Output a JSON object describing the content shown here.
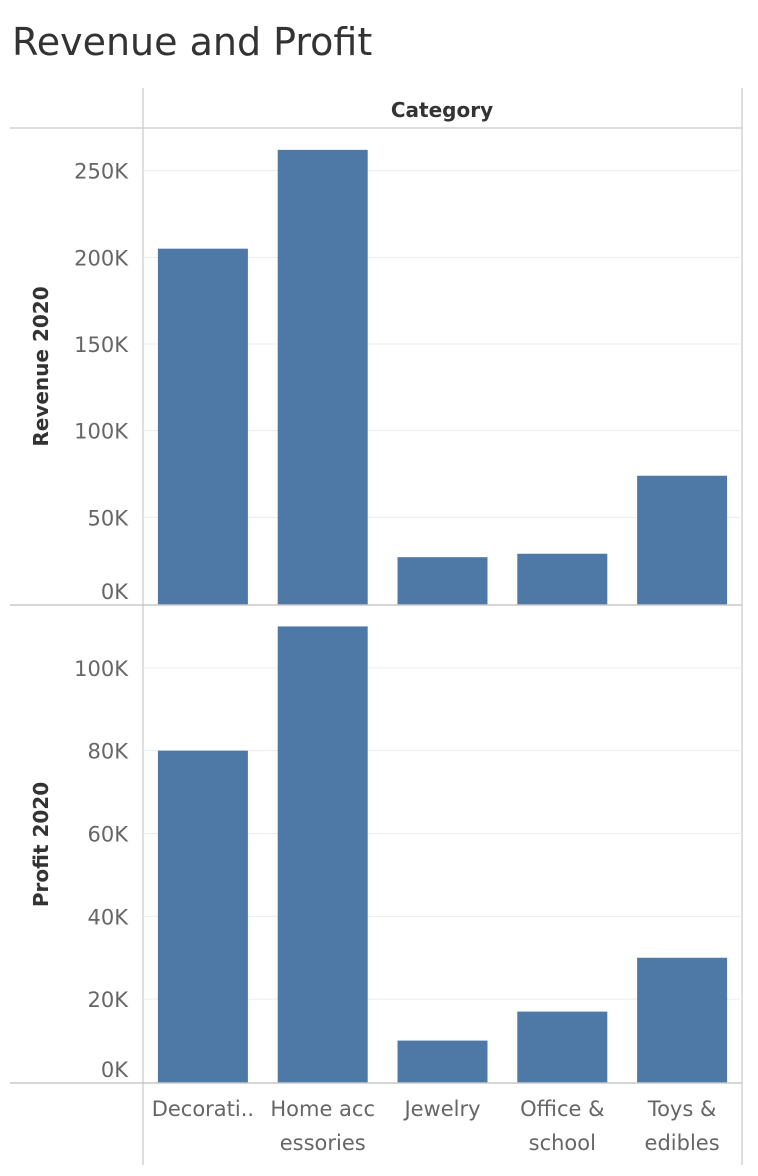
{
  "chart_data": {
    "type": "bar",
    "title": "Revenue and Profit",
    "column_header": "Category",
    "categories": [
      "Decorati..",
      "Home accessories",
      "Jewelry",
      "Office & school",
      "Toys & edibles"
    ],
    "category_label_lines": [
      [
        "Decorati.."
      ],
      [
        "Home acc",
        "essories"
      ],
      [
        "Jewelry"
      ],
      [
        "Office &",
        "school"
      ],
      [
        "Toys &",
        "edibles"
      ]
    ],
    "bar_color": "#4e79a7",
    "grid": true,
    "panels": [
      {
        "ylabel": "Revenue 2020",
        "ylim": [
          0,
          270000
        ],
        "yticks": [
          0,
          50000,
          100000,
          150000,
          200000,
          250000
        ],
        "ytick_labels": [
          "0K",
          "50K",
          "100K",
          "150K",
          "200K",
          "250K"
        ],
        "values": [
          205000,
          262000,
          27000,
          29000,
          74000
        ]
      },
      {
        "ylabel": "Profit 2020",
        "ylim": [
          0,
          113000
        ],
        "yticks": [
          0,
          20000,
          40000,
          60000,
          80000,
          100000
        ],
        "ytick_labels": [
          "0K",
          "20K",
          "40K",
          "60K",
          "80K",
          "100K"
        ],
        "values": [
          80000,
          110000,
          10000,
          17000,
          30000
        ]
      }
    ]
  }
}
